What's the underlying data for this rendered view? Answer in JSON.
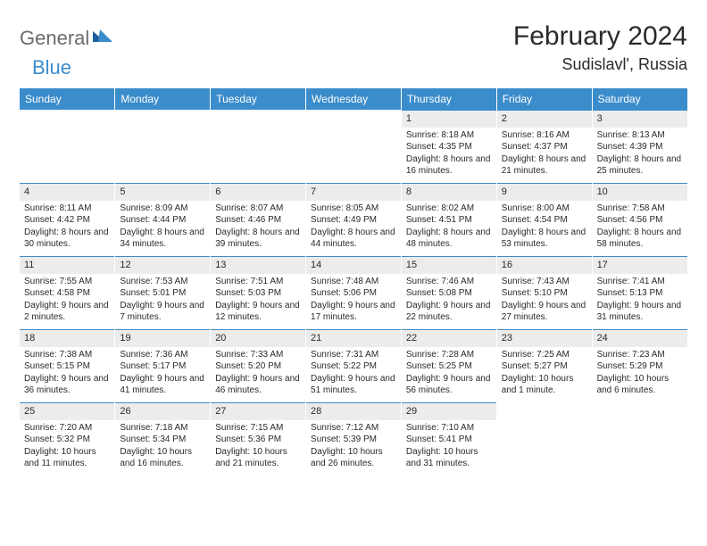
{
  "brand": {
    "general": "General",
    "blue": "Blue"
  },
  "title": "February 2024",
  "location": "Sudislavl', Russia",
  "headers": [
    "Sunday",
    "Monday",
    "Tuesday",
    "Wednesday",
    "Thursday",
    "Friday",
    "Saturday"
  ],
  "colors": {
    "accent": "#3b8ccb",
    "daybg": "#ececec",
    "text": "#2a2a2a",
    "logo_gray": "#6b6b6b"
  },
  "leading_blanks": 4,
  "days": [
    {
      "n": "1",
      "sunrise": "8:18 AM",
      "sunset": "4:35 PM",
      "daylight": "8 hours and 16 minutes."
    },
    {
      "n": "2",
      "sunrise": "8:16 AM",
      "sunset": "4:37 PM",
      "daylight": "8 hours and 21 minutes."
    },
    {
      "n": "3",
      "sunrise": "8:13 AM",
      "sunset": "4:39 PM",
      "daylight": "8 hours and 25 minutes."
    },
    {
      "n": "4",
      "sunrise": "8:11 AM",
      "sunset": "4:42 PM",
      "daylight": "8 hours and 30 minutes."
    },
    {
      "n": "5",
      "sunrise": "8:09 AM",
      "sunset": "4:44 PM",
      "daylight": "8 hours and 34 minutes."
    },
    {
      "n": "6",
      "sunrise": "8:07 AM",
      "sunset": "4:46 PM",
      "daylight": "8 hours and 39 minutes."
    },
    {
      "n": "7",
      "sunrise": "8:05 AM",
      "sunset": "4:49 PM",
      "daylight": "8 hours and 44 minutes."
    },
    {
      "n": "8",
      "sunrise": "8:02 AM",
      "sunset": "4:51 PM",
      "daylight": "8 hours and 48 minutes."
    },
    {
      "n": "9",
      "sunrise": "8:00 AM",
      "sunset": "4:54 PM",
      "daylight": "8 hours and 53 minutes."
    },
    {
      "n": "10",
      "sunrise": "7:58 AM",
      "sunset": "4:56 PM",
      "daylight": "8 hours and 58 minutes."
    },
    {
      "n": "11",
      "sunrise": "7:55 AM",
      "sunset": "4:58 PM",
      "daylight": "9 hours and 2 minutes."
    },
    {
      "n": "12",
      "sunrise": "7:53 AM",
      "sunset": "5:01 PM",
      "daylight": "9 hours and 7 minutes."
    },
    {
      "n": "13",
      "sunrise": "7:51 AM",
      "sunset": "5:03 PM",
      "daylight": "9 hours and 12 minutes."
    },
    {
      "n": "14",
      "sunrise": "7:48 AM",
      "sunset": "5:06 PM",
      "daylight": "9 hours and 17 minutes."
    },
    {
      "n": "15",
      "sunrise": "7:46 AM",
      "sunset": "5:08 PM",
      "daylight": "9 hours and 22 minutes."
    },
    {
      "n": "16",
      "sunrise": "7:43 AM",
      "sunset": "5:10 PM",
      "daylight": "9 hours and 27 minutes."
    },
    {
      "n": "17",
      "sunrise": "7:41 AM",
      "sunset": "5:13 PM",
      "daylight": "9 hours and 31 minutes."
    },
    {
      "n": "18",
      "sunrise": "7:38 AM",
      "sunset": "5:15 PM",
      "daylight": "9 hours and 36 minutes."
    },
    {
      "n": "19",
      "sunrise": "7:36 AM",
      "sunset": "5:17 PM",
      "daylight": "9 hours and 41 minutes."
    },
    {
      "n": "20",
      "sunrise": "7:33 AM",
      "sunset": "5:20 PM",
      "daylight": "9 hours and 46 minutes."
    },
    {
      "n": "21",
      "sunrise": "7:31 AM",
      "sunset": "5:22 PM",
      "daylight": "9 hours and 51 minutes."
    },
    {
      "n": "22",
      "sunrise": "7:28 AM",
      "sunset": "5:25 PM",
      "daylight": "9 hours and 56 minutes."
    },
    {
      "n": "23",
      "sunrise": "7:25 AM",
      "sunset": "5:27 PM",
      "daylight": "10 hours and 1 minute."
    },
    {
      "n": "24",
      "sunrise": "7:23 AM",
      "sunset": "5:29 PM",
      "daylight": "10 hours and 6 minutes."
    },
    {
      "n": "25",
      "sunrise": "7:20 AM",
      "sunset": "5:32 PM",
      "daylight": "10 hours and 11 minutes."
    },
    {
      "n": "26",
      "sunrise": "7:18 AM",
      "sunset": "5:34 PM",
      "daylight": "10 hours and 16 minutes."
    },
    {
      "n": "27",
      "sunrise": "7:15 AM",
      "sunset": "5:36 PM",
      "daylight": "10 hours and 21 minutes."
    },
    {
      "n": "28",
      "sunrise": "7:12 AM",
      "sunset": "5:39 PM",
      "daylight": "10 hours and 26 minutes."
    },
    {
      "n": "29",
      "sunrise": "7:10 AM",
      "sunset": "5:41 PM",
      "daylight": "10 hours and 31 minutes."
    }
  ],
  "labels": {
    "sunrise": "Sunrise: ",
    "sunset": "Sunset: ",
    "daylight": "Daylight: "
  }
}
